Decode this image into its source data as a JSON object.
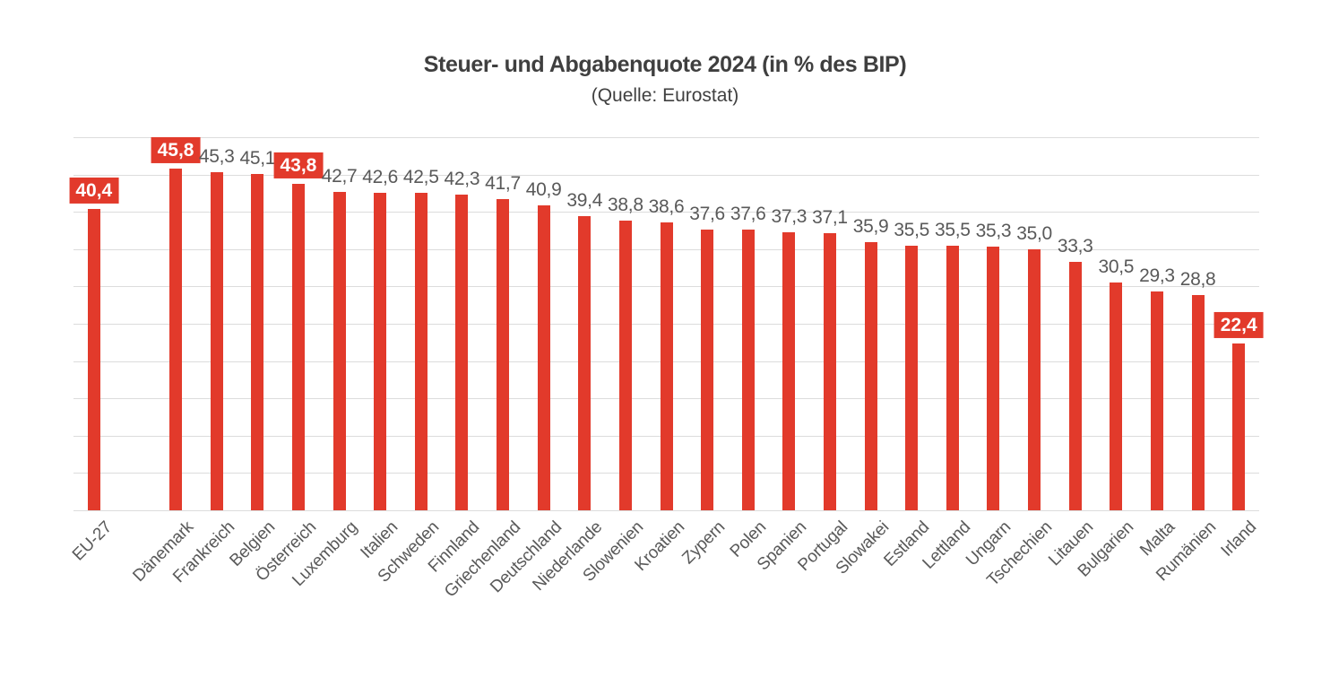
{
  "chart_data": {
    "type": "bar",
    "title": "Steuer- und Abgabenquote 2024 (in % des BIP)",
    "subtitle": "(Quelle: Eurostat)",
    "categories": [
      "EU-27",
      "Dänemark",
      "Frankreich",
      "Belgien",
      "Österreich",
      "Luxemburg",
      "Italien",
      "Schweden",
      "Finnland",
      "Griechenland",
      "Deutschland",
      "Niederlande",
      "Slowenien",
      "Kroatien",
      "Zypern",
      "Polen",
      "Spanien",
      "Portugal",
      "Slowakei",
      "Estland",
      "Lettland",
      "Ungarn",
      "Tschechien",
      "Litauen",
      "Bulgarien",
      "Malta",
      "Rumänien",
      "Irland"
    ],
    "values": [
      40.4,
      45.8,
      45.3,
      45.1,
      43.8,
      42.7,
      42.6,
      42.5,
      42.3,
      41.7,
      40.9,
      39.4,
      38.8,
      38.6,
      37.6,
      37.6,
      37.3,
      37.1,
      35.9,
      35.5,
      35.5,
      35.3,
      35.0,
      33.3,
      30.5,
      29.3,
      28.8,
      22.4
    ],
    "value_labels": [
      "40,4",
      "45,8",
      "45,3",
      "45,1",
      "43,8",
      "42,7",
      "42,6",
      "42,5",
      "42,3",
      "41,7",
      "40,9",
      "39,4",
      "38,8",
      "38,6",
      "37,6",
      "37,6",
      "37,3",
      "37,1",
      "35,9",
      "35,5",
      "35,5",
      "35,3",
      "35,0",
      "33,3",
      "30,5",
      "29,3",
      "28,8",
      "22,4"
    ],
    "highlighted_categories": [
      "EU-27",
      "Dänemark",
      "Österreich",
      "Irland"
    ],
    "gap_after_first_category": true,
    "xlabel": "",
    "ylabel": "",
    "ylim": [
      0,
      50
    ],
    "gridline_interval": 5,
    "grid": true,
    "legend": "none",
    "colors": {
      "bar": "#e23a2b",
      "highlight_box": "#e23a2b",
      "highlight_text": "#ffffff",
      "value_text": "#595959",
      "axis_text": "#595959",
      "gridline": "#dcdcdc",
      "title_text": "#3f3f3f",
      "subtitle_text": "#404040"
    }
  }
}
